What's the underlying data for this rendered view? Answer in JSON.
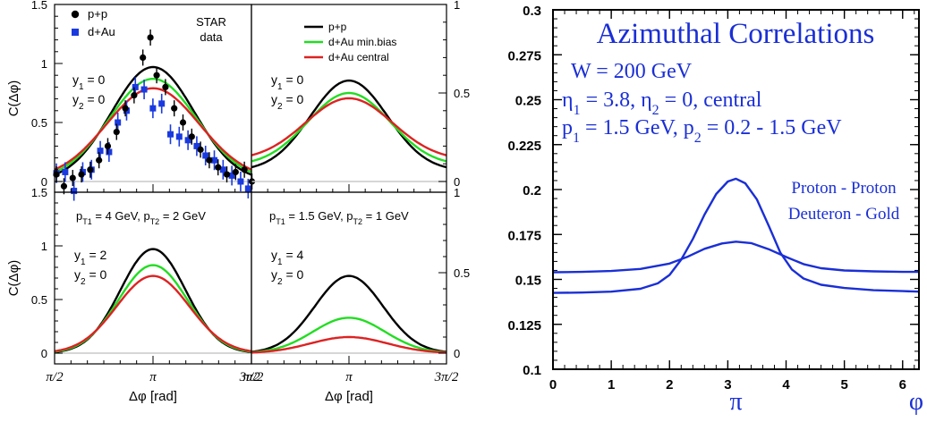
{
  "chart_data": [
    {
      "type": "scatter",
      "panel": "top-left",
      "ylabel": "C(Δφ)",
      "ylim": [
        0,
        1.5
      ],
      "yticks": [
        "0",
        "0.5",
        "1",
        "1.5"
      ],
      "annotations": [
        "STAR",
        "data"
      ],
      "kin_lines": [
        {
          "base": "y",
          "sub": "1",
          "rest": " = 0"
        },
        {
          "base": "y",
          "sub": "2",
          "rest": " = 0"
        }
      ],
      "legend": [
        {
          "name": "p+p",
          "color": "#000000",
          "marker": "circle"
        },
        {
          "name": "d+Au",
          "color": "#1a3adf",
          "marker": "square"
        }
      ],
      "curves": [
        {
          "name": "p+p",
          "color": "#000000",
          "peak": 0.97,
          "sigma": 0.66,
          "base": 0.0
        },
        {
          "name": "d+Au min.bias",
          "color": "#22dd22",
          "peak": 0.86,
          "sigma": 0.7,
          "base": 0.01
        },
        {
          "name": "d+Au central",
          "color": "#dd2222",
          "peak": 0.77,
          "sigma": 0.74,
          "base": 0.02
        }
      ],
      "points_pp": [
        [
          1.6,
          0.06
        ],
        [
          1.72,
          -0.04
        ],
        [
          1.86,
          0.03
        ],
        [
          2.0,
          0.06
        ],
        [
          2.14,
          0.1
        ],
        [
          2.28,
          0.18
        ],
        [
          2.42,
          0.3
        ],
        [
          2.56,
          0.42
        ],
        [
          2.7,
          0.62
        ],
        [
          2.84,
          0.73
        ],
        [
          2.98,
          1.05
        ],
        [
          3.1,
          1.22
        ],
        [
          3.2,
          0.9
        ],
        [
          3.34,
          0.8
        ],
        [
          3.48,
          0.62
        ],
        [
          3.62,
          0.5
        ],
        [
          3.76,
          0.38
        ],
        [
          3.9,
          0.27
        ],
        [
          4.04,
          0.18
        ],
        [
          4.18,
          0.12
        ],
        [
          4.32,
          0.06
        ],
        [
          4.46,
          0.08
        ],
        [
          4.6,
          0.1
        ],
        [
          4.72,
          0.0
        ]
      ],
      "points_dau": [
        [
          1.6,
          0.07
        ],
        [
          1.74,
          0.08
        ],
        [
          1.88,
          -0.08
        ],
        [
          2.02,
          0.08
        ],
        [
          2.16,
          0.1
        ],
        [
          2.3,
          0.26
        ],
        [
          2.44,
          0.25
        ],
        [
          2.58,
          0.5
        ],
        [
          2.72,
          0.6
        ],
        [
          2.86,
          0.8
        ],
        [
          3.0,
          0.78
        ],
        [
          3.14,
          0.62
        ],
        [
          3.28,
          0.66
        ],
        [
          3.42,
          0.4
        ],
        [
          3.56,
          0.38
        ],
        [
          3.7,
          0.35
        ],
        [
          3.84,
          0.3
        ],
        [
          3.98,
          0.22
        ],
        [
          4.12,
          0.18
        ],
        [
          4.26,
          0.1
        ],
        [
          4.4,
          0.05
        ],
        [
          4.54,
          0.0
        ],
        [
          4.66,
          -0.06
        ]
      ]
    },
    {
      "type": "line",
      "panel": "top-right",
      "ylim": [
        0,
        1
      ],
      "yticks": [
        "0",
        "0.5",
        "1"
      ],
      "kin_lines": [
        {
          "base": "y",
          "sub": "1",
          "rest": " = 0"
        },
        {
          "base": "y",
          "sub": "2",
          "rest": " = 0"
        }
      ],
      "legend": [
        {
          "name": "p+p",
          "color": "#000000"
        },
        {
          "name": "d+Au min.bias",
          "color": "#22dd22"
        },
        {
          "name": "d+Au central",
          "color": "#dd2222"
        }
      ],
      "curves": [
        {
          "name": "p+p",
          "color": "#000000",
          "peak": 0.51,
          "sigma": 0.62,
          "base": 0.06
        },
        {
          "name": "d+Au min.bias",
          "color": "#22dd22",
          "peak": 0.41,
          "sigma": 0.66,
          "base": 0.09
        },
        {
          "name": "d+Au central",
          "color": "#dd2222",
          "peak": 0.35,
          "sigma": 0.7,
          "base": 0.12
        }
      ]
    },
    {
      "type": "line",
      "panel": "bottom-left",
      "ylabel": "C(Δφ)",
      "ylim": [
        0,
        1.5
      ],
      "yticks": [
        "0",
        "0.5",
        "1",
        "1.5"
      ],
      "xticks": [
        "π/2",
        "π",
        "3π/2"
      ],
      "xlabel": "Δφ [rad]",
      "pt_label": {
        "p1": "p",
        "s1": "T1",
        "v1": " = 4 GeV, ",
        "p2": "p",
        "s2": "T2",
        "v2": " = 2 GeV"
      },
      "kin_lines": [
        {
          "base": "y",
          "sub": "1",
          "rest": " = 2"
        },
        {
          "base": "y",
          "sub": "2",
          "rest": " = 0"
        }
      ],
      "curves": [
        {
          "name": "p+p",
          "color": "#000000",
          "peak": 0.97,
          "sigma": 0.52,
          "base": 0.0
        },
        {
          "name": "d+Au min.bias",
          "color": "#22dd22",
          "peak": 0.82,
          "sigma": 0.55,
          "base": 0.0
        },
        {
          "name": "d+Au central",
          "color": "#dd2222",
          "peak": 0.72,
          "sigma": 0.58,
          "base": 0.0
        }
      ]
    },
    {
      "type": "line",
      "panel": "bottom-right",
      "ylim": [
        0,
        1
      ],
      "yticks": [
        "0",
        "0.5",
        "1"
      ],
      "xticks": [
        "π/2",
        "π",
        "3π/2"
      ],
      "xlabel": "Δφ [rad]",
      "pt_label": {
        "p1": "p",
        "s1": "T1",
        "v1": " = 1.5 GeV, ",
        "p2": "p",
        "s2": "T2",
        "v2": " = 1 GeV"
      },
      "kin_lines": [
        {
          "base": "y",
          "sub": "1",
          "rest": " = 4"
        },
        {
          "base": "y",
          "sub": "2",
          "rest": " = 0"
        }
      ],
      "curves": [
        {
          "name": "p+p",
          "color": "#000000",
          "peak": 0.48,
          "sigma": 0.55,
          "base": 0.0
        },
        {
          "name": "d+Au min.bias",
          "color": "#22dd22",
          "peak": 0.22,
          "sigma": 0.58,
          "base": 0.0
        },
        {
          "name": "d+Au central",
          "color": "#dd2222",
          "peak": 0.1,
          "sigma": 0.62,
          "base": 0.0
        }
      ]
    },
    {
      "type": "line",
      "panel": "right",
      "title": "Azimuthal Correlations",
      "xlim": [
        0,
        6.28
      ],
      "ylim": [
        0.1,
        0.3
      ],
      "xticks": [
        "0",
        "1",
        "2",
        "3",
        "4",
        "5",
        "6"
      ],
      "yticks": [
        "0.1",
        "0.125",
        "0.15",
        "0.175",
        "0.2",
        "0.225",
        "0.25",
        "0.275",
        "0.3"
      ],
      "x_extra_labels": [
        {
          "text": "π",
          "x": 3.1416
        },
        {
          "text": "φ",
          "x": 6.28
        }
      ],
      "info_lines": [
        {
          "parts": [
            {
              "t": "W = 200 GeV"
            }
          ]
        },
        {
          "parts": [
            {
              "t": "η"
            },
            {
              "t": "1",
              "sub": true
            },
            {
              "t": " = 3.8, η"
            },
            {
              "t": "2",
              "sub": true
            },
            {
              "t": " = 0, central"
            }
          ]
        },
        {
          "parts": [
            {
              "t": "p"
            },
            {
              "t": "1",
              "sub": true
            },
            {
              "t": " = 1.5  GeV, p"
            },
            {
              "t": "2",
              "sub": true
            },
            {
              "t": " = 0.2 - 1.5 GeV"
            }
          ]
        }
      ],
      "series_labels": [
        "Proton - Proton",
        "Deuteron - Gold"
      ],
      "color": "#1a2fd6",
      "series": [
        {
          "name": "Proton - Proton",
          "x": [
            0,
            0.5,
            1.0,
            1.5,
            1.8,
            2.0,
            2.2,
            2.4,
            2.6,
            2.8,
            3.0,
            3.14,
            3.3,
            3.5,
            3.7,
            3.9,
            4.1,
            4.3,
            4.6,
            5.0,
            5.5,
            6.0,
            6.28
          ],
          "y": [
            0.1425,
            0.1427,
            0.1432,
            0.1448,
            0.1478,
            0.1525,
            0.161,
            0.1725,
            0.186,
            0.1975,
            0.2045,
            0.206,
            0.2035,
            0.1945,
            0.18,
            0.165,
            0.1555,
            0.1505,
            0.147,
            0.1452,
            0.144,
            0.1435,
            0.1432
          ]
        },
        {
          "name": "Deuteron - Gold",
          "x": [
            0,
            0.5,
            1.0,
            1.5,
            2.0,
            2.3,
            2.6,
            2.9,
            3.14,
            3.4,
            3.7,
            4.0,
            4.3,
            4.6,
            5.0,
            5.5,
            6.0,
            6.28
          ],
          "y": [
            0.154,
            0.1542,
            0.1547,
            0.1558,
            0.1588,
            0.1625,
            0.167,
            0.17,
            0.171,
            0.1702,
            0.1668,
            0.1625,
            0.1585,
            0.1562,
            0.155,
            0.1545,
            0.1542,
            0.1542
          ]
        }
      ]
    }
  ]
}
